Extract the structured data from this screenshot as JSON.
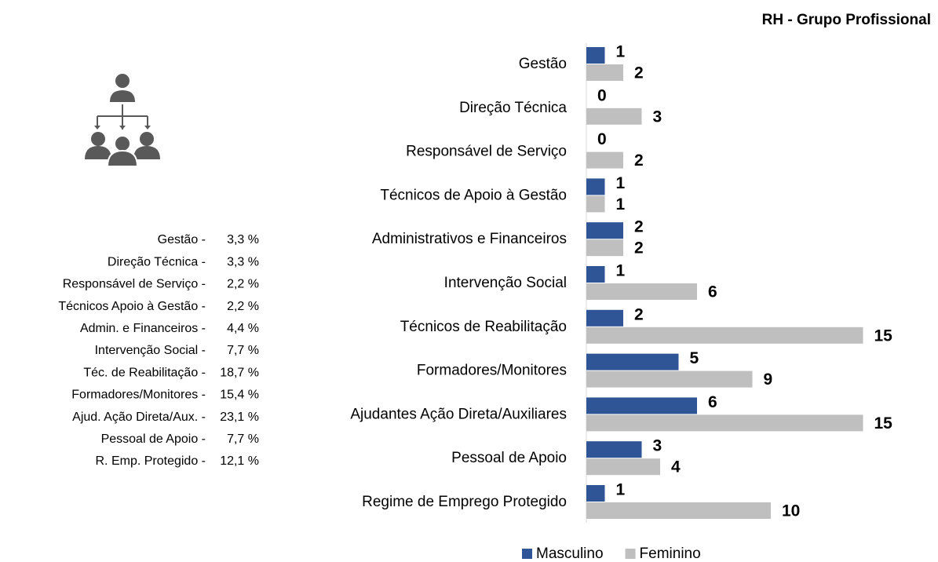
{
  "chart_data": {
    "type": "bar",
    "orientation": "horizontal",
    "title": "RH - Grupo Profissional",
    "categories": [
      "Gestão",
      "Direção Técnica",
      "Responsável de Serviço",
      "Técnicos de Apoio à Gestão",
      "Administrativos e Financeiros",
      "Intervenção Social",
      "Técnicos de Reabilitação",
      "Formadores/Monitores",
      "Ajudantes Ação Direta/Auxiliares",
      "Pessoal de Apoio",
      "Regime de Emprego Protegido"
    ],
    "series": [
      {
        "name": "Masculino",
        "color": "#2f5597",
        "values": [
          1,
          0,
          0,
          1,
          2,
          1,
          2,
          5,
          6,
          3,
          1
        ]
      },
      {
        "name": "Feminino",
        "color": "#bfbfbf",
        "values": [
          2,
          3,
          2,
          1,
          2,
          6,
          15,
          9,
          15,
          4,
          10
        ]
      }
    ],
    "xlim": [
      0,
      16
    ],
    "legend": "bottom"
  },
  "side_list": [
    {
      "label": "Gestão -",
      "value": "3,3 %"
    },
    {
      "label": "Direção Técnica -",
      "value": "3,3 %"
    },
    {
      "label": "Responsável de Serviço -",
      "value": "2,2 %"
    },
    {
      "label": "Técnicos Apoio à Gestão -",
      "value": "2,2 %"
    },
    {
      "label": "Admin. e Financeiros -",
      "value": "4,4 %"
    },
    {
      "label": "Intervenção Social -",
      "value": "7,7 %"
    },
    {
      "label": "Téc. de Reabilitação -",
      "value": "18,7 %"
    },
    {
      "label": "Formadores/Monitores -",
      "value": "15,4 %"
    },
    {
      "label": "Ajud. Ação Direta/Aux. -",
      "value": "23,1 %"
    },
    {
      "label": "Pessoal de Apoio -",
      "value": "7,7 %"
    },
    {
      "label": "R. Emp. Protegido -",
      "value": "12,1 %"
    }
  ]
}
